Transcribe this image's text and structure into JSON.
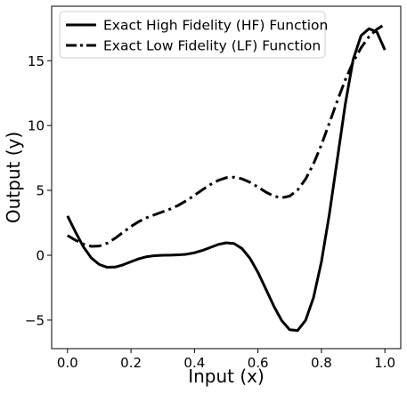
{
  "chart_data": {
    "type": "line",
    "title": "",
    "xlabel": "Input (x)",
    "ylabel": "Output (y)",
    "xlim": [
      -0.05,
      1.05
    ],
    "ylim": [
      -7.2,
      19.2
    ],
    "xticks": [
      0.0,
      0.2,
      0.4,
      0.6,
      0.8,
      1.0
    ],
    "xtick_labels": [
      "0.0",
      "0.2",
      "0.4",
      "0.6",
      "0.8",
      "1.0"
    ],
    "yticks": [
      -5,
      0,
      5,
      10,
      15
    ],
    "ytick_labels": [
      "−5",
      "0",
      "5",
      "10",
      "15"
    ],
    "grid": false,
    "legend_position": "top-left",
    "series": [
      {
        "name": "Exact High Fidelity (HF) Function",
        "line_style": "solid",
        "color": "#000000",
        "x": [
          0.0,
          0.025,
          0.05,
          0.075,
          0.1,
          0.125,
          0.15,
          0.175,
          0.2,
          0.225,
          0.25,
          0.275,
          0.3,
          0.325,
          0.35,
          0.375,
          0.4,
          0.425,
          0.45,
          0.475,
          0.5,
          0.525,
          0.55,
          0.575,
          0.6,
          0.625,
          0.65,
          0.675,
          0.7,
          0.725,
          0.75,
          0.775,
          0.8,
          0.825,
          0.85,
          0.875,
          0.9,
          0.925,
          0.95,
          0.975,
          1.0
        ],
        "y": [
          3.03,
          1.8,
          0.65,
          -0.21,
          -0.71,
          -0.93,
          -0.91,
          -0.74,
          -0.5,
          -0.27,
          -0.11,
          -0.03,
          0.0,
          0.01,
          0.03,
          0.08,
          0.19,
          0.37,
          0.6,
          0.83,
          0.96,
          0.9,
          0.51,
          -0.24,
          -1.32,
          -2.61,
          -3.92,
          -5.04,
          -5.74,
          -5.8,
          -5.02,
          -3.27,
          -0.5,
          3.16,
          7.39,
          11.62,
          15.09,
          16.94,
          17.47,
          17.2,
          15.83
        ],
        "y_original": [
          3.03,
          1.8,
          0.65,
          -0.21,
          -0.71,
          -0.93,
          -0.91,
          -0.74,
          -0.5,
          -0.27,
          -0.11,
          -0.03,
          0.0,
          0.01,
          0.03,
          0.08,
          0.19,
          0.37,
          0.6,
          0.83,
          0.96,
          0.9,
          0.51,
          -0.24,
          -1.32,
          -2.61,
          -3.92,
          -5.04,
          -5.74,
          -5.8,
          -5.02,
          -3.27,
          -0.5,
          3.16,
          7.39,
          11.62,
          15.09,
          16.94,
          17.47,
          17.2,
          15.83
        ]
      },
      {
        "name": "Exact Low Fidelity (LF) Function",
        "line_style": "dashdot",
        "color": "#000000",
        "x": [
          0.0,
          0.025,
          0.05,
          0.075,
          0.1,
          0.125,
          0.15,
          0.175,
          0.2,
          0.225,
          0.25,
          0.275,
          0.3,
          0.325,
          0.35,
          0.375,
          0.4,
          0.425,
          0.45,
          0.475,
          0.5,
          0.525,
          0.55,
          0.575,
          0.6,
          0.625,
          0.65,
          0.675,
          0.7,
          0.725,
          0.75,
          0.775,
          0.8,
          0.825,
          0.85,
          0.875,
          0.9,
          0.925,
          0.95,
          0.975,
          1.0
        ],
        "y": [
          1.52,
          1.16,
          0.86,
          0.69,
          0.71,
          0.93,
          1.31,
          1.77,
          2.22,
          2.6,
          2.9,
          3.13,
          3.35,
          3.58,
          3.86,
          4.22,
          4.62,
          5.05,
          5.45,
          5.77,
          5.98,
          6.02,
          5.89,
          5.62,
          5.26,
          4.87,
          4.56,
          4.43,
          4.56,
          5.03,
          5.87,
          7.04,
          8.52,
          10.19,
          11.9,
          13.51,
          14.9,
          16.0,
          16.85,
          17.43,
          17.8
        ]
      }
    ]
  }
}
